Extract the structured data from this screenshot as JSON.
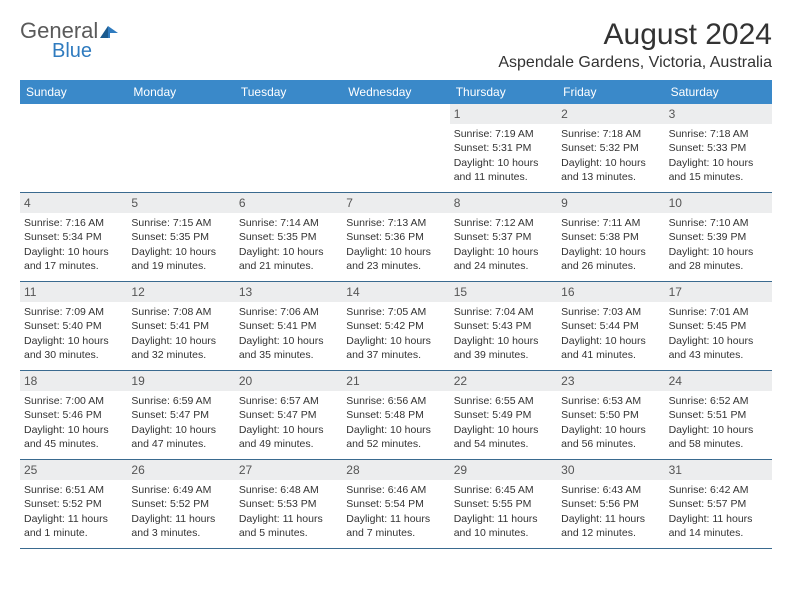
{
  "logo": {
    "text_general": "General",
    "text_blue": "Blue"
  },
  "title": "August 2024",
  "location": "Aspendale Gardens, Victoria, Australia",
  "colors": {
    "header_bg": "#3a89c9",
    "header_text": "#ffffff",
    "daynum_bg": "#ecedee",
    "rule": "#3a6a8f",
    "logo_gray": "#5a5a5a",
    "logo_blue": "#2f7bbf"
  },
  "day_names": [
    "Sunday",
    "Monday",
    "Tuesday",
    "Wednesday",
    "Thursday",
    "Friday",
    "Saturday"
  ],
  "weeks": [
    [
      {
        "day": "",
        "sunrise": "",
        "sunset": "",
        "daylight": ""
      },
      {
        "day": "",
        "sunrise": "",
        "sunset": "",
        "daylight": ""
      },
      {
        "day": "",
        "sunrise": "",
        "sunset": "",
        "daylight": ""
      },
      {
        "day": "",
        "sunrise": "",
        "sunset": "",
        "daylight": ""
      },
      {
        "day": "1",
        "sunrise": "Sunrise: 7:19 AM",
        "sunset": "Sunset: 5:31 PM",
        "daylight": "Daylight: 10 hours and 11 minutes."
      },
      {
        "day": "2",
        "sunrise": "Sunrise: 7:18 AM",
        "sunset": "Sunset: 5:32 PM",
        "daylight": "Daylight: 10 hours and 13 minutes."
      },
      {
        "day": "3",
        "sunrise": "Sunrise: 7:18 AM",
        "sunset": "Sunset: 5:33 PM",
        "daylight": "Daylight: 10 hours and 15 minutes."
      }
    ],
    [
      {
        "day": "4",
        "sunrise": "Sunrise: 7:16 AM",
        "sunset": "Sunset: 5:34 PM",
        "daylight": "Daylight: 10 hours and 17 minutes."
      },
      {
        "day": "5",
        "sunrise": "Sunrise: 7:15 AM",
        "sunset": "Sunset: 5:35 PM",
        "daylight": "Daylight: 10 hours and 19 minutes."
      },
      {
        "day": "6",
        "sunrise": "Sunrise: 7:14 AM",
        "sunset": "Sunset: 5:35 PM",
        "daylight": "Daylight: 10 hours and 21 minutes."
      },
      {
        "day": "7",
        "sunrise": "Sunrise: 7:13 AM",
        "sunset": "Sunset: 5:36 PM",
        "daylight": "Daylight: 10 hours and 23 minutes."
      },
      {
        "day": "8",
        "sunrise": "Sunrise: 7:12 AM",
        "sunset": "Sunset: 5:37 PM",
        "daylight": "Daylight: 10 hours and 24 minutes."
      },
      {
        "day": "9",
        "sunrise": "Sunrise: 7:11 AM",
        "sunset": "Sunset: 5:38 PM",
        "daylight": "Daylight: 10 hours and 26 minutes."
      },
      {
        "day": "10",
        "sunrise": "Sunrise: 7:10 AM",
        "sunset": "Sunset: 5:39 PM",
        "daylight": "Daylight: 10 hours and 28 minutes."
      }
    ],
    [
      {
        "day": "11",
        "sunrise": "Sunrise: 7:09 AM",
        "sunset": "Sunset: 5:40 PM",
        "daylight": "Daylight: 10 hours and 30 minutes."
      },
      {
        "day": "12",
        "sunrise": "Sunrise: 7:08 AM",
        "sunset": "Sunset: 5:41 PM",
        "daylight": "Daylight: 10 hours and 32 minutes."
      },
      {
        "day": "13",
        "sunrise": "Sunrise: 7:06 AM",
        "sunset": "Sunset: 5:41 PM",
        "daylight": "Daylight: 10 hours and 35 minutes."
      },
      {
        "day": "14",
        "sunrise": "Sunrise: 7:05 AM",
        "sunset": "Sunset: 5:42 PM",
        "daylight": "Daylight: 10 hours and 37 minutes."
      },
      {
        "day": "15",
        "sunrise": "Sunrise: 7:04 AM",
        "sunset": "Sunset: 5:43 PM",
        "daylight": "Daylight: 10 hours and 39 minutes."
      },
      {
        "day": "16",
        "sunrise": "Sunrise: 7:03 AM",
        "sunset": "Sunset: 5:44 PM",
        "daylight": "Daylight: 10 hours and 41 minutes."
      },
      {
        "day": "17",
        "sunrise": "Sunrise: 7:01 AM",
        "sunset": "Sunset: 5:45 PM",
        "daylight": "Daylight: 10 hours and 43 minutes."
      }
    ],
    [
      {
        "day": "18",
        "sunrise": "Sunrise: 7:00 AM",
        "sunset": "Sunset: 5:46 PM",
        "daylight": "Daylight: 10 hours and 45 minutes."
      },
      {
        "day": "19",
        "sunrise": "Sunrise: 6:59 AM",
        "sunset": "Sunset: 5:47 PM",
        "daylight": "Daylight: 10 hours and 47 minutes."
      },
      {
        "day": "20",
        "sunrise": "Sunrise: 6:57 AM",
        "sunset": "Sunset: 5:47 PM",
        "daylight": "Daylight: 10 hours and 49 minutes."
      },
      {
        "day": "21",
        "sunrise": "Sunrise: 6:56 AM",
        "sunset": "Sunset: 5:48 PM",
        "daylight": "Daylight: 10 hours and 52 minutes."
      },
      {
        "day": "22",
        "sunrise": "Sunrise: 6:55 AM",
        "sunset": "Sunset: 5:49 PM",
        "daylight": "Daylight: 10 hours and 54 minutes."
      },
      {
        "day": "23",
        "sunrise": "Sunrise: 6:53 AM",
        "sunset": "Sunset: 5:50 PM",
        "daylight": "Daylight: 10 hours and 56 minutes."
      },
      {
        "day": "24",
        "sunrise": "Sunrise: 6:52 AM",
        "sunset": "Sunset: 5:51 PM",
        "daylight": "Daylight: 10 hours and 58 minutes."
      }
    ],
    [
      {
        "day": "25",
        "sunrise": "Sunrise: 6:51 AM",
        "sunset": "Sunset: 5:52 PM",
        "daylight": "Daylight: 11 hours and 1 minute."
      },
      {
        "day": "26",
        "sunrise": "Sunrise: 6:49 AM",
        "sunset": "Sunset: 5:52 PM",
        "daylight": "Daylight: 11 hours and 3 minutes."
      },
      {
        "day": "27",
        "sunrise": "Sunrise: 6:48 AM",
        "sunset": "Sunset: 5:53 PM",
        "daylight": "Daylight: 11 hours and 5 minutes."
      },
      {
        "day": "28",
        "sunrise": "Sunrise: 6:46 AM",
        "sunset": "Sunset: 5:54 PM",
        "daylight": "Daylight: 11 hours and 7 minutes."
      },
      {
        "day": "29",
        "sunrise": "Sunrise: 6:45 AM",
        "sunset": "Sunset: 5:55 PM",
        "daylight": "Daylight: 11 hours and 10 minutes."
      },
      {
        "day": "30",
        "sunrise": "Sunrise: 6:43 AM",
        "sunset": "Sunset: 5:56 PM",
        "daylight": "Daylight: 11 hours and 12 minutes."
      },
      {
        "day": "31",
        "sunrise": "Sunrise: 6:42 AM",
        "sunset": "Sunset: 5:57 PM",
        "daylight": "Daylight: 11 hours and 14 minutes."
      }
    ]
  ]
}
